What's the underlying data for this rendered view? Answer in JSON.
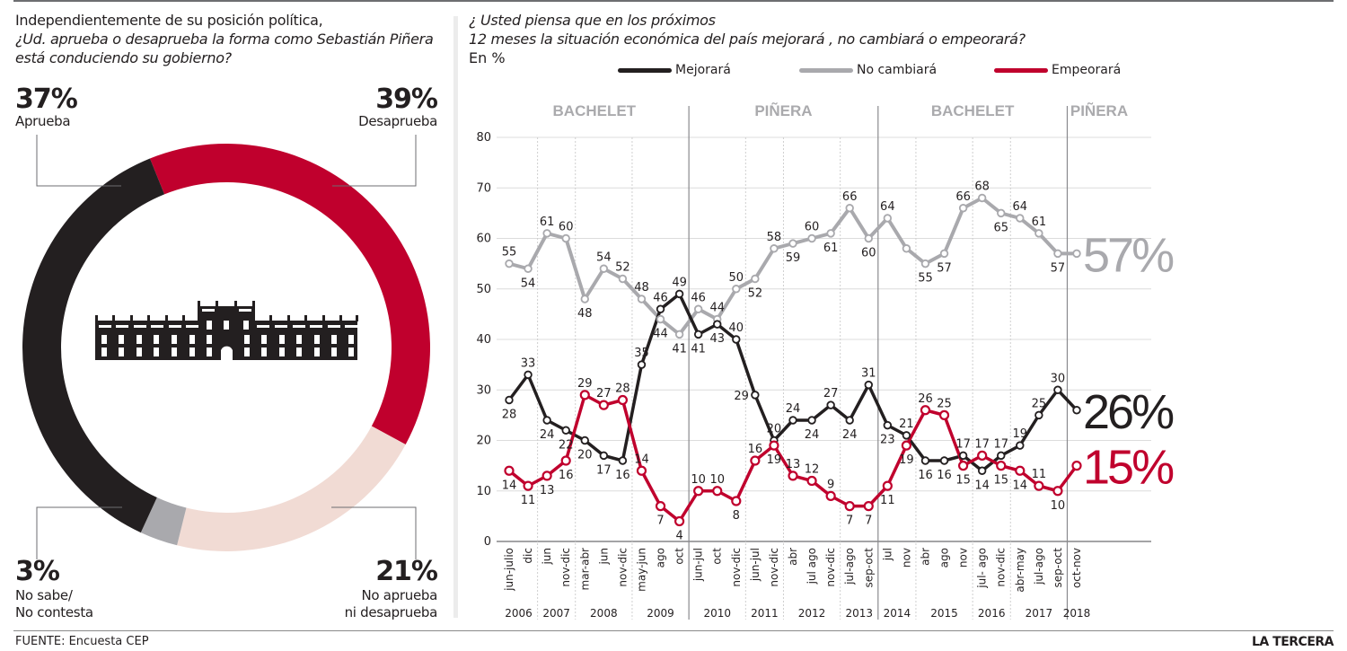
{
  "left_panel": {
    "title_line1": "Independientemente de su posición política,",
    "title_question": "¿Ud. aprueba o desaprueba la forma como Sebastián Piñera está conduciendo su gobierno?",
    "icon": "government-palace-icon",
    "segments": [
      {
        "label_line1": "Aprueba",
        "label_line2": "",
        "value_text": "37%",
        "value": 37,
        "color": "#231f20"
      },
      {
        "label_line1": "Desaprueba",
        "label_line2": "",
        "value_text": "39%",
        "value": 39,
        "color": "#c0002d"
      },
      {
        "label_line1": "No aprueba",
        "label_line2": "ni desaprueba",
        "value_text": "21%",
        "value": 21,
        "color": "#f1dbd4"
      },
      {
        "label_line1": "No sabe/",
        "label_line2": "No contesta",
        "value_text": "3%",
        "value": 3,
        "color": "#a9a9ad"
      }
    ]
  },
  "right_panel": {
    "title_line1": "¿ Usted piensa que en los próximos",
    "title_line2": "12 meses la situación económica del país mejorará , no cambiará o empeorará?",
    "unit": "En %"
  },
  "footer": {
    "source": "FUENTE: Encuesta CEP",
    "brand": "LA TERCERA"
  },
  "chart_data": [
    {
      "type": "pie",
      "title": "¿Ud. aprueba o desaprueba la forma como Sebastián Piñera está conduciendo su gobierno?",
      "categories": [
        "Aprueba",
        "Desaprueba",
        "No aprueba ni desaprueba",
        "No sabe/No contesta"
      ],
      "values": [
        37,
        39,
        21,
        3
      ]
    },
    {
      "type": "line",
      "title": "¿ Usted piensa que en los próximos 12 meses la situación económica del país mejorará , no cambiará o empeorará?",
      "ylabel": "En %",
      "ylim": [
        0,
        80
      ],
      "yticks": [
        0,
        10,
        20,
        30,
        40,
        50,
        60,
        70,
        80
      ],
      "grid": true,
      "legend_position": "top",
      "x": [
        "jun-julio",
        "dic",
        "jun",
        "nov-dic",
        "mar-abr",
        "jun",
        "nov-dic",
        "may-jun",
        "ago",
        "oct",
        "jun-jul",
        "oct",
        "nov-dic",
        "jun-jul",
        "nov-dic",
        "abr",
        "jul ago",
        "nov-dic",
        "jul-ago",
        "sep-oct",
        "jul",
        "nov",
        "abr",
        "ago",
        "nov",
        "jul- ago",
        "nov-dic",
        "abr-may",
        "jul-ago",
        "sep-oct",
        "oct-nov"
      ],
      "years": [
        {
          "label": "2006",
          "start": 0,
          "end": 1
        },
        {
          "label": "2007",
          "start": 2,
          "end": 3
        },
        {
          "label": "2008",
          "start": 4,
          "end": 6
        },
        {
          "label": "2009",
          "start": 7,
          "end": 9
        },
        {
          "label": "2010",
          "start": 10,
          "end": 12
        },
        {
          "label": "2011",
          "start": 13,
          "end": 14
        },
        {
          "label": "2012",
          "start": 15,
          "end": 17
        },
        {
          "label": "2013",
          "start": 18,
          "end": 19
        },
        {
          "label": "2014",
          "start": 20,
          "end": 21
        },
        {
          "label": "2015",
          "start": 22,
          "end": 24
        },
        {
          "label": "2016",
          "start": 25,
          "end": 26
        },
        {
          "label": "2017",
          "start": 27,
          "end": 29
        },
        {
          "label": "2018",
          "start": 30,
          "end": 30
        }
      ],
      "periods": [
        {
          "label": "BACHELET",
          "start": 0,
          "end": 9
        },
        {
          "label": "PIÑERA",
          "start": 10,
          "end": 19
        },
        {
          "label": "BACHELET",
          "start": 20,
          "end": 29
        },
        {
          "label": "PIÑERA",
          "start": 30,
          "end": 30
        }
      ],
      "series": [
        {
          "name": "Mejorará",
          "color": "#231f20",
          "final_label": "26%",
          "values": [
            28,
            33,
            24,
            22,
            20,
            17,
            16,
            35,
            46,
            49,
            41,
            43,
            40,
            29,
            20,
            24,
            24,
            27,
            24,
            31,
            23,
            21,
            16,
            16,
            17,
            14,
            17,
            19,
            25,
            30,
            26
          ],
          "labeled": [
            true,
            true,
            true,
            true,
            true,
            true,
            true,
            true,
            true,
            true,
            true,
            true,
            true,
            true,
            true,
            true,
            true,
            true,
            true,
            true,
            true,
            true,
            true,
            true,
            true,
            true,
            true,
            true,
            true,
            true,
            false
          ],
          "label_pos": [
            "b",
            "t",
            "b",
            "b",
            "b",
            "b",
            "b",
            "t",
            "t",
            "t",
            "b",
            "b",
            "t",
            "l",
            "t",
            "t",
            "b",
            "t",
            "b",
            "t",
            "b",
            "t",
            "b",
            "b",
            "t",
            "b",
            "t",
            "t",
            "t",
            "t",
            "n"
          ]
        },
        {
          "name": "No cambiará",
          "color": "#a9a9ad",
          "final_label": "57%",
          "values": [
            55,
            54,
            61,
            60,
            48,
            54,
            52,
            48,
            44,
            41,
            46,
            44,
            50,
            52,
            58,
            59,
            60,
            61,
            66,
            60,
            64,
            58,
            55,
            57,
            66,
            68,
            65,
            64,
            61,
            57,
            57
          ],
          "labeled": [
            true,
            true,
            true,
            true,
            true,
            true,
            true,
            true,
            true,
            true,
            true,
            true,
            true,
            true,
            true,
            true,
            true,
            true,
            true,
            true,
            true,
            false,
            true,
            true,
            true,
            true,
            true,
            true,
            true,
            true,
            false
          ],
          "label_pos": [
            "t",
            "b",
            "t",
            "t",
            "b",
            "t",
            "t",
            "t",
            "b",
            "b",
            "t",
            "t",
            "t",
            "b",
            "t",
            "b",
            "t",
            "b",
            "t",
            "b",
            "t",
            "n",
            "b",
            "b",
            "t",
            "t",
            "b",
            "t",
            "t",
            "b",
            "n"
          ]
        },
        {
          "name": "Empeorará",
          "color": "#c0002d",
          "final_label": "15%",
          "values": [
            14,
            11,
            13,
            16,
            29,
            27,
            28,
            14,
            7,
            4,
            10,
            10,
            8,
            16,
            19,
            13,
            12,
            9,
            7,
            7,
            11,
            19,
            26,
            25,
            15,
            17,
            15,
            14,
            11,
            10,
            15
          ],
          "labeled": [
            true,
            true,
            true,
            true,
            true,
            true,
            true,
            true,
            true,
            true,
            true,
            true,
            true,
            true,
            true,
            true,
            true,
            true,
            true,
            true,
            true,
            true,
            true,
            true,
            true,
            true,
            true,
            true,
            true,
            true,
            false
          ],
          "label_pos": [
            "b",
            "b",
            "b",
            "b",
            "t",
            "t",
            "t",
            "t",
            "b",
            "b",
            "t",
            "t",
            "b",
            "t",
            "b",
            "t",
            "t",
            "t",
            "b",
            "b",
            "b",
            "b",
            "t",
            "t",
            "b",
            "t",
            "b",
            "b",
            "t",
            "b",
            "n"
          ]
        }
      ]
    }
  ]
}
